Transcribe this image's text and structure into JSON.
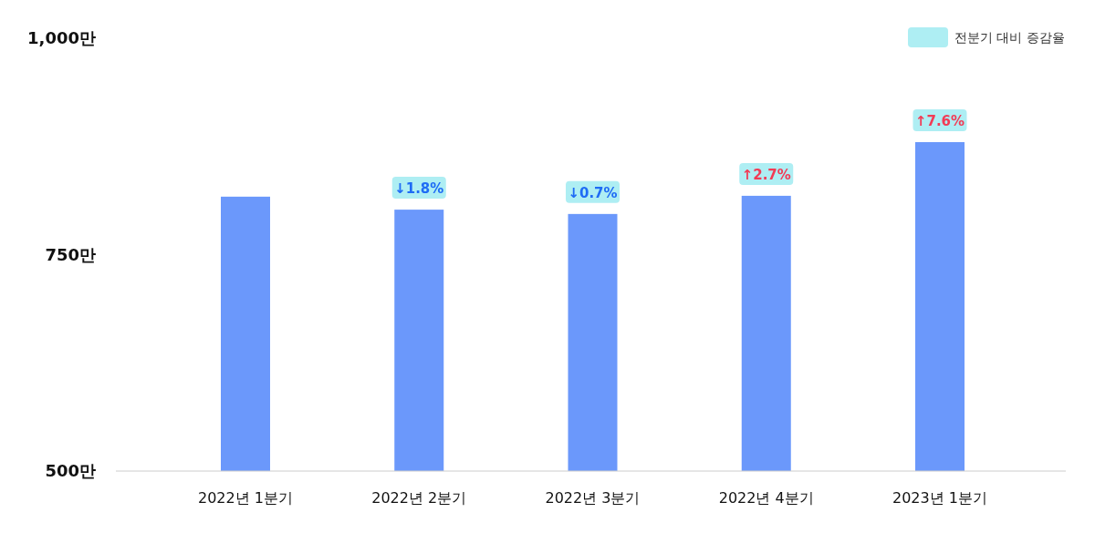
{
  "chart_data": {
    "type": "bar",
    "categories": [
      "2022년 1분기",
      "2022년 2분기",
      "2022년 3분기",
      "2022년 4분기",
      "2023년 1분기"
    ],
    "series": [
      {
        "color": "#6b98fb",
        "values": [
          817,
          802,
          797,
          818,
          880
        ]
      }
    ],
    "annotations": [
      "전분기 대비 증감율",
      {
        "text": "↓1.8%",
        "x": "2022년 2분기",
        "y": 802
      },
      {
        "text": "↓0.7%",
        "x": "2022년 3분기",
        "y": 797
      },
      {
        "text": "↑2.7%",
        "x": "2022년 4분기",
        "y": 818
      },
      {
        "text": "↑7.6%",
        "x": "2023년 1분기",
        "y": 880
      }
    ],
    "ylim": [
      500,
      1000
    ],
    "yticks": [
      {
        "value": 500,
        "label": "500만"
      },
      {
        "value": 750,
        "label": "750만"
      },
      {
        "value": 1000,
        "label": "1,000만"
      }
    ],
    "grid": false
  }
}
